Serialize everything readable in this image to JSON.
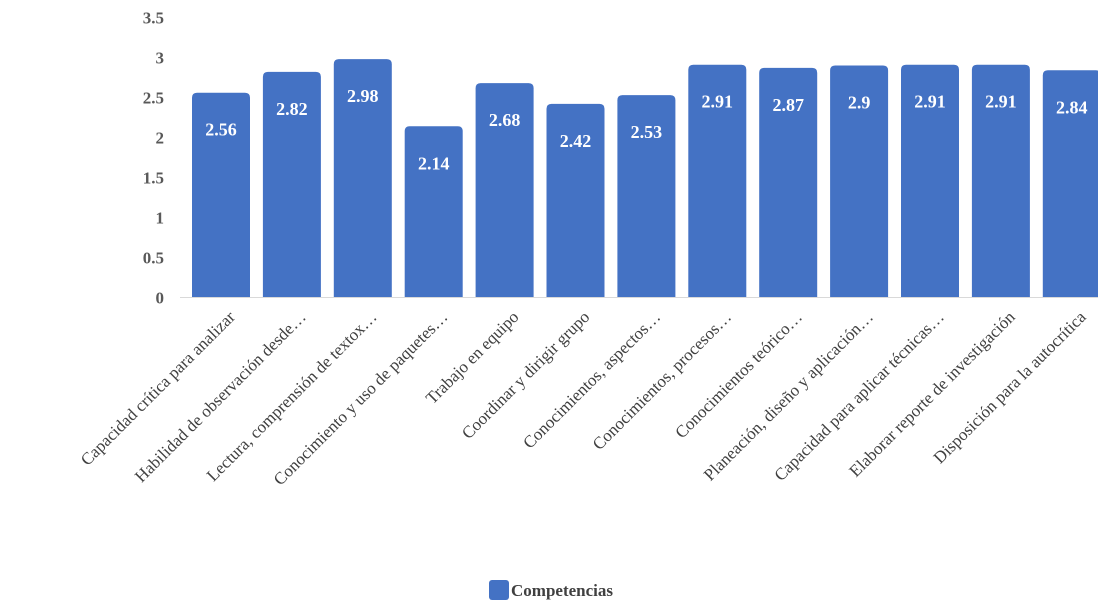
{
  "chart_data": {
    "type": "bar",
    "title": "",
    "xlabel": "",
    "ylabel": "",
    "ylim": [
      0,
      3.5
    ],
    "yticks": [
      "0",
      "0.5",
      "1",
      "1.5",
      "2",
      "2.5",
      "3",
      "3.5"
    ],
    "grid": false,
    "legend_position": "bottom",
    "bar_color": "#4472C4",
    "categories": [
      "Capacidad crítica para analizar",
      "Habilidad de observación desde…",
      "Lectura, comprensión de textox…",
      "Conocimiento y uso de paquetes…",
      "Trabajo en equipo",
      "Coordinar y dirigir grupo",
      "Conocimientos, aspectos…",
      "Conocimientos, procesos…",
      "Conocimientos teórico…",
      "Planeación, diseño y aplicación…",
      "Capacidad para aplicar técnicas…",
      "Elaborar reporte de investigación",
      "Disposición para la autocrítica"
    ],
    "series": [
      {
        "name": "Competencias",
        "values": [
          2.56,
          2.82,
          2.98,
          2.14,
          2.68,
          2.42,
          2.53,
          2.91,
          2.87,
          2.9,
          2.91,
          2.91,
          2.84
        ],
        "labels": [
          "2.56",
          "2.82",
          "2.98",
          "2.14",
          "2.68",
          "2.42",
          "2.53",
          "2.91",
          "2.87",
          "2.9",
          "2.91",
          "2.91",
          "2.84"
        ]
      }
    ]
  }
}
